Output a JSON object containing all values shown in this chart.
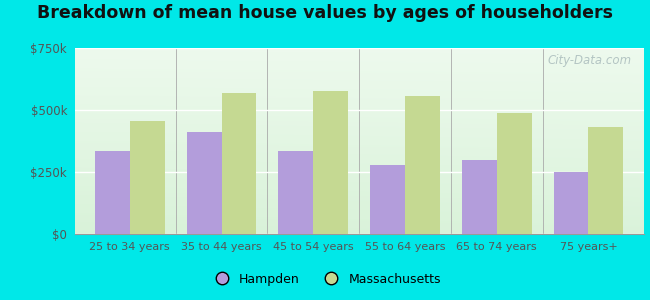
{
  "categories": [
    "25 to 34 years",
    "35 to 44 years",
    "45 to 54 years",
    "55 to 64 years",
    "65 to 74 years",
    "75 years+"
  ],
  "hampden_values": [
    335000,
    410000,
    335000,
    278000,
    298000,
    248000
  ],
  "massachusetts_values": [
    455000,
    570000,
    575000,
    555000,
    488000,
    430000
  ],
  "hampden_color": "#b39ddb",
  "massachusetts_color": "#c5d992",
  "title": "Breakdown of mean house values by ages of householders",
  "title_fontsize": 12.5,
  "background_outer": "#00e8e8",
  "ylim": [
    0,
    750000
  ],
  "yticks": [
    0,
    250000,
    500000,
    750000
  ],
  "ytick_labels": [
    "$0",
    "$250k",
    "$500k",
    "$750k"
  ],
  "legend_hampden": "Hampden",
  "legend_massachusetts": "Massachusetts",
  "bar_width": 0.38,
  "watermark": "City-Data.com"
}
